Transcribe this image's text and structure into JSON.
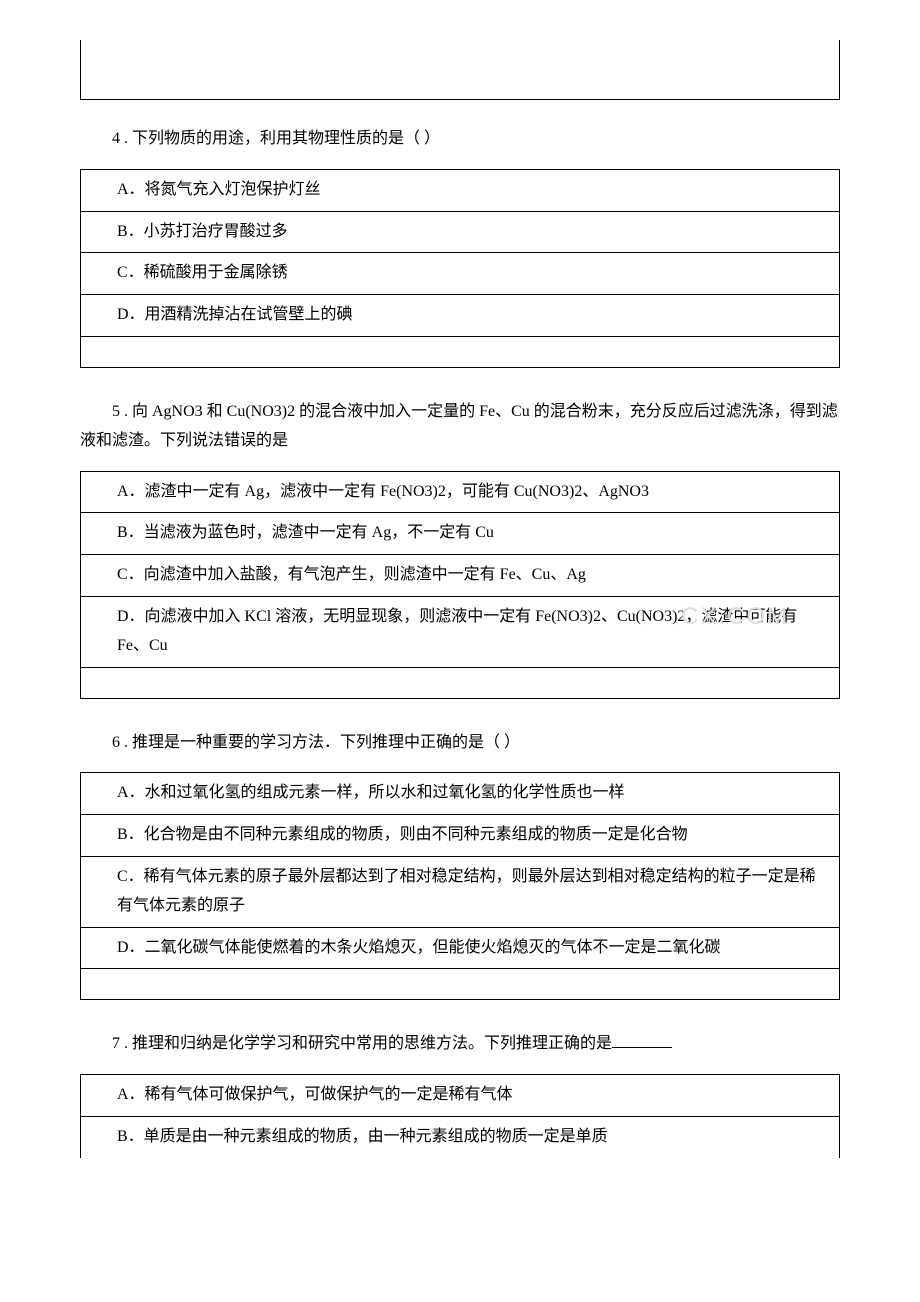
{
  "emptyBox": {},
  "q4": {
    "text": "4 . 下列物质的用途，利用其物理性质的是（ ）",
    "options": {
      "a": "A．将氮气充入灯泡保护灯丝",
      "b": "B．小苏打治疗胃酸过多",
      "c": "C．稀硫酸用于金属除锈",
      "d": "D．用酒精洗掉沾在试管壁上的碘"
    }
  },
  "q5": {
    "text": "5 . 向 AgNO3 和 Cu(NO3)2 的混合液中加入一定量的 Fe、Cu 的混合粉末，充分反应后过滤洗涤，得到滤液和滤渣。下列说法错误的是",
    "options": {
      "a": "A．滤渣中一定有 Ag，滤液中一定有 Fe(NO3)2，可能有 Cu(NO3)2、AgNO3",
      "b": "B．当滤液为蓝色时，滤渣中一定有 Ag，不一定有 Cu",
      "c": "C．向滤渣中加入盐酸，有气泡产生，则滤渣中一定有 Fe、Cu、Ag",
      "d": "D．向滤液中加入 KCl 溶液，无明显现象，则滤液中一定有 Fe(NO3)2、Cu(NO3)2，滤渣中可能有 Fe、Cu"
    }
  },
  "q6": {
    "text": "6 . 推理是一种重要的学习方法．下列推理中正确的是（ ）",
    "options": {
      "a": "A．水和过氧化氢的组成元素一样，所以水和过氧化氢的化学性质也一样",
      "b": "B．化合物是由不同种元素组成的物质，则由不同种元素组成的物质一定是化合物",
      "c": "C．稀有气体元素的原子最外层都达到了相对稳定结构，则最外层达到相对稳定结构的粒子一定是稀有气体元素的原子",
      "d": "D．二氧化碳气体能使燃着的木条火焰熄灭，但能使火焰熄灭的气体不一定是二氧化碳"
    }
  },
  "q7": {
    "text_prefix": "7 . 推理和归纳是化学学习和研究中常用的思维方法。下列推理正确的是",
    "options": {
      "a": "A．稀有气体可做保护气，可做保护气的一定是稀有气体",
      "b": "B．单质是由一种元素组成的物质，由一种元素组成的物质一定是单质"
    }
  },
  "watermark": "CX.COM"
}
